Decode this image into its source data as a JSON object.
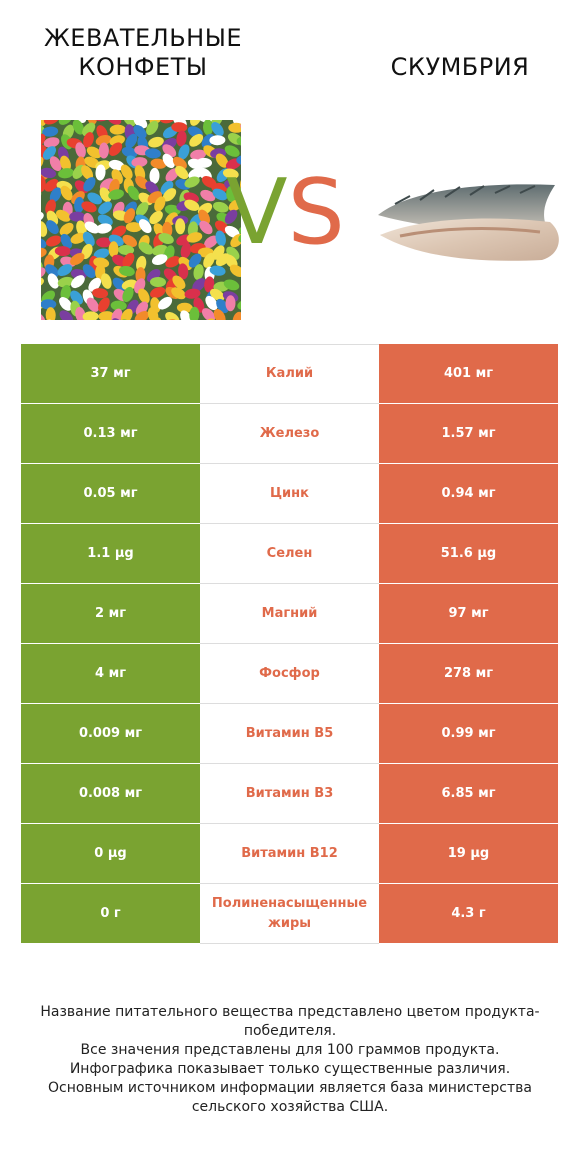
{
  "titles": {
    "left": "ЖЕВАТЕЛЬНЫЕ КОНФЕТЫ",
    "right": "СКУМБРИЯ"
  },
  "vs": {
    "v": "V",
    "s": "S"
  },
  "colors": {
    "left": "#7aa331",
    "right": "#e06a4a"
  },
  "images": {
    "left": "jelly-beans-photo",
    "right": "mackerel-fillet-photo"
  },
  "rows": [
    {
      "left": "37 мг",
      "label": "Калий",
      "right": "401 мг"
    },
    {
      "left": "0.13 мг",
      "label": "Железо",
      "right": "1.57 мг"
    },
    {
      "left": "0.05 мг",
      "label": "Цинк",
      "right": "0.94 мг"
    },
    {
      "left": "1.1 µg",
      "label": "Селен",
      "right": "51.6 µg"
    },
    {
      "left": "2 мг",
      "label": "Магний",
      "right": "97 мг"
    },
    {
      "left": "4 мг",
      "label": "Фосфор",
      "right": "278 мг"
    },
    {
      "left": "0.009 мг",
      "label": "Витамин B5",
      "right": "0.99 мг"
    },
    {
      "left": "0.008 мг",
      "label": "Витамин B3",
      "right": "6.85 мг"
    },
    {
      "left": "0 µg",
      "label": "Витамин B12",
      "right": "19 µg"
    },
    {
      "left": "0 г",
      "label": "Полиненасыщенные жиры",
      "right": "4.3 г"
    }
  ],
  "footnote": [
    "Название питательного вещества представлено цветом продукта-победителя.",
    "Все значения представлены для 100 граммов продукта.",
    "Инфографика показывает только существенные различия.",
    "Основным источником информации является база министерства сельского хозяйства США."
  ]
}
